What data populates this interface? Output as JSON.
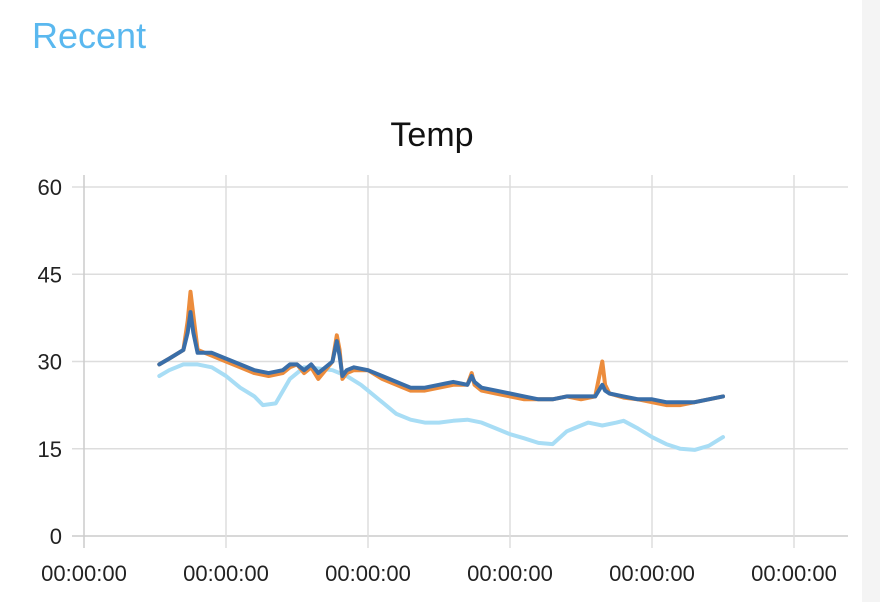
{
  "header": {
    "title": "Recent"
  },
  "chart_data": {
    "type": "line",
    "title": "Temp",
    "xlabel": "",
    "ylabel": "",
    "ylim": [
      0,
      60
    ],
    "yticks": [
      0,
      15,
      30,
      45,
      60
    ],
    "xlim": [
      0,
      5
    ],
    "xticks": [
      0,
      1,
      2,
      3,
      4,
      5
    ],
    "xtick_labels": [
      "00:00:00",
      "00:00:00",
      "00:00:00",
      "00:00:00",
      "00:00:00",
      "00:00:00"
    ],
    "grid": true,
    "legend": "none",
    "series": [
      {
        "color": "#a8ddf5",
        "x": [
          0.53,
          0.6,
          0.7,
          0.8,
          0.9,
          1.0,
          1.1,
          1.2,
          1.26,
          1.35,
          1.45,
          1.55,
          1.65,
          1.75,
          1.85,
          1.95,
          2.0,
          2.1,
          2.2,
          2.3,
          2.4,
          2.5,
          2.6,
          2.7,
          2.8,
          2.9,
          3.0,
          3.1,
          3.2,
          3.3,
          3.4,
          3.45,
          3.55,
          3.65,
          3.75,
          3.8,
          3.9,
          4.0,
          4.1,
          4.2,
          4.3,
          4.4,
          4.5
        ],
        "values": [
          27.5,
          28.5,
          29.5,
          29.5,
          29.0,
          27.5,
          25.5,
          24.0,
          22.5,
          22.8,
          27.0,
          29.0,
          28.8,
          28.5,
          27.5,
          26.0,
          25.0,
          23.0,
          21.0,
          20.0,
          19.5,
          19.5,
          19.8,
          20.0,
          19.5,
          18.5,
          17.5,
          16.8,
          16.0,
          15.8,
          18.0,
          18.5,
          19.5,
          19.0,
          19.5,
          19.8,
          18.5,
          17.0,
          15.8,
          15.0,
          14.8,
          15.5,
          17.0
        ]
      },
      {
        "color": "#ec8c3c",
        "x": [
          0.53,
          0.6,
          0.7,
          0.73,
          0.75,
          0.77,
          0.8,
          0.9,
          1.0,
          1.1,
          1.2,
          1.3,
          1.4,
          1.45,
          1.5,
          1.55,
          1.6,
          1.65,
          1.7,
          1.75,
          1.78,
          1.8,
          1.82,
          1.85,
          1.9,
          2.0,
          2.1,
          2.2,
          2.3,
          2.4,
          2.5,
          2.6,
          2.7,
          2.73,
          2.75,
          2.8,
          2.9,
          3.0,
          3.1,
          3.2,
          3.3,
          3.4,
          3.5,
          3.6,
          3.65,
          3.67,
          3.7,
          3.8,
          3.9,
          4.0,
          4.1,
          4.2,
          4.3,
          4.4,
          4.5
        ],
        "values": [
          29.5,
          30.5,
          32.0,
          37.0,
          42.0,
          38.0,
          32.0,
          31.0,
          30.0,
          29.0,
          28.0,
          27.5,
          28.0,
          29.0,
          29.5,
          28.0,
          29.0,
          27.0,
          28.5,
          30.0,
          34.5,
          32.0,
          27.0,
          28.0,
          28.5,
          28.5,
          27.0,
          26.0,
          25.0,
          25.0,
          25.5,
          26.0,
          26.0,
          28.0,
          26.0,
          25.0,
          24.5,
          24.0,
          23.5,
          23.5,
          23.5,
          24.0,
          23.5,
          24.0,
          30.0,
          26.0,
          24.5,
          23.8,
          23.5,
          23.0,
          22.5,
          22.5,
          23.0,
          23.5,
          24.0
        ]
      },
      {
        "color": "#3a6ea8",
        "x": [
          0.53,
          0.6,
          0.7,
          0.73,
          0.75,
          0.77,
          0.8,
          0.9,
          1.0,
          1.1,
          1.2,
          1.3,
          1.4,
          1.45,
          1.5,
          1.55,
          1.6,
          1.65,
          1.7,
          1.75,
          1.78,
          1.8,
          1.82,
          1.85,
          1.9,
          2.0,
          2.1,
          2.2,
          2.3,
          2.4,
          2.5,
          2.6,
          2.7,
          2.73,
          2.75,
          2.8,
          2.9,
          3.0,
          3.1,
          3.2,
          3.3,
          3.4,
          3.5,
          3.6,
          3.65,
          3.67,
          3.7,
          3.8,
          3.9,
          4.0,
          4.1,
          4.2,
          4.3,
          4.4,
          4.5
        ],
        "values": [
          29.5,
          30.5,
          32.0,
          35.0,
          38.5,
          35.0,
          31.5,
          31.5,
          30.5,
          29.5,
          28.5,
          28.0,
          28.5,
          29.5,
          29.5,
          28.5,
          29.5,
          28.0,
          29.0,
          30.0,
          33.5,
          31.0,
          27.5,
          28.5,
          29.0,
          28.5,
          27.5,
          26.5,
          25.5,
          25.5,
          26.0,
          26.5,
          26.0,
          27.5,
          26.5,
          25.5,
          25.0,
          24.5,
          24.0,
          23.5,
          23.5,
          24.0,
          24.0,
          24.0,
          26.0,
          25.0,
          24.5,
          24.0,
          23.5,
          23.5,
          23.0,
          23.0,
          23.0,
          23.5,
          24.0
        ]
      }
    ]
  }
}
